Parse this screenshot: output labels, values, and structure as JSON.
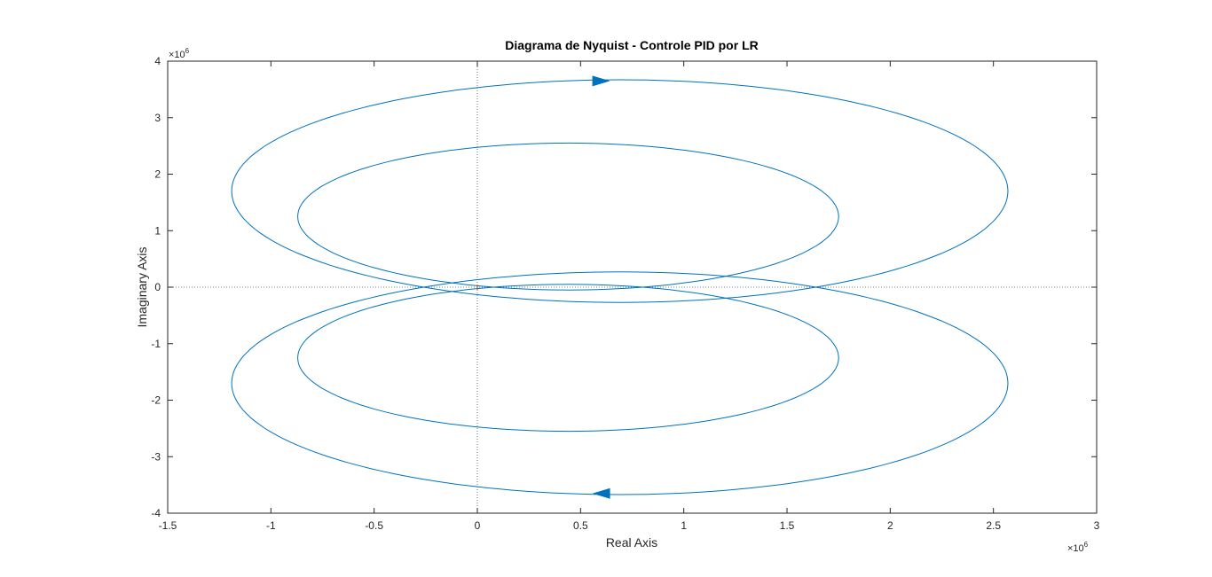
{
  "chart_data": {
    "type": "line",
    "title": "Diagrama de Nyquist - Controle PID por LR",
    "xlabel": "Real Axis",
    "ylabel": "Imaginary Axis",
    "xlim": [
      -1.5,
      3
    ],
    "ylim": [
      -4,
      4
    ],
    "x_exponent": {
      "base": "×10",
      "power": "6"
    },
    "y_exponent": {
      "base": "×10",
      "power": "6"
    },
    "xticks": [
      -1.5,
      -1,
      -0.5,
      0,
      0.5,
      1,
      1.5,
      2,
      2.5,
      3
    ],
    "xtick_labels": [
      "-1.5",
      "-1",
      "-0.5",
      "0",
      "0.5",
      "1",
      "1.5",
      "2",
      "2.5",
      "3"
    ],
    "yticks": [
      -4,
      -3,
      -2,
      -1,
      0,
      1,
      2,
      3,
      4
    ],
    "ytick_labels": [
      "-4",
      "-3",
      "-2",
      "-1",
      "0",
      "1",
      "2",
      "3",
      "4"
    ],
    "grid": false,
    "zero_lines": true,
    "critical_point": {
      "x": -1e-06,
      "y": 0,
      "color": "#d95319"
    },
    "line_color": "#0072bd",
    "series": [
      {
        "type": "outer-loop-upper",
        "cx": 0.69,
        "cy": 1.7,
        "rx": 1.88,
        "ry": 1.97
      },
      {
        "type": "inner-loop-upper",
        "cx": 0.44,
        "cy": 1.25,
        "rx": 1.31,
        "ry": 1.3
      },
      {
        "type": "outer-loop-lower",
        "cx": 0.69,
        "cy": -1.7,
        "rx": 1.88,
        "ry": 1.97
      },
      {
        "type": "inner-loop-lower",
        "cx": 0.44,
        "cy": -1.25,
        "rx": 1.31,
        "ry": 1.3
      }
    ],
    "arrows": [
      {
        "x": 0.6,
        "y": 3.65,
        "direction": "right"
      },
      {
        "x": 0.6,
        "y": -3.65,
        "direction": "left"
      }
    ]
  }
}
